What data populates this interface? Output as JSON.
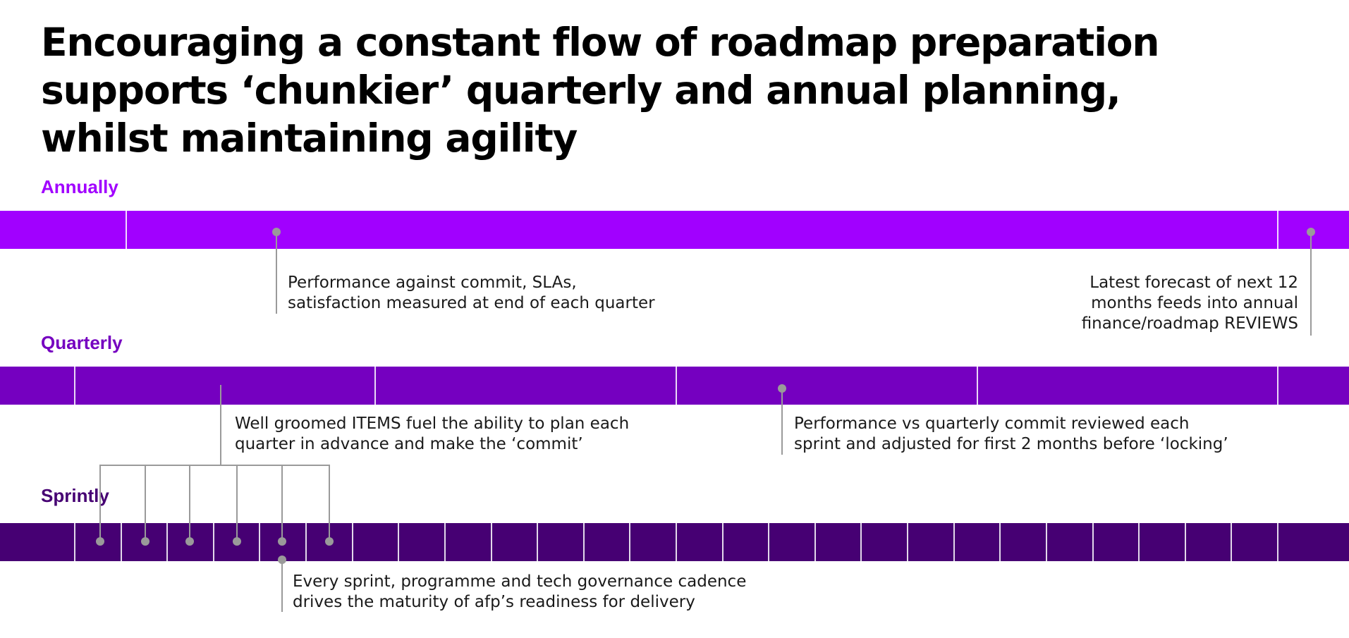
{
  "title": {
    "lines": [
      "Encouraging a constant flow of roadmap preparation",
      "supports ‘chunkier’ quarterly and annual planning,",
      "whilst maintaining agility"
    ]
  },
  "colors": {
    "annual": "#a100ff",
    "quarterly": "#7500c0",
    "sprintly": "#460073",
    "connector": "#9a9a9a"
  },
  "sections": {
    "annually": {
      "label": "Annually"
    },
    "quarterly": {
      "label": "Quarterly"
    },
    "sprintly": {
      "label": "Sprintly"
    }
  },
  "callouts": {
    "performance_quarter": [
      "Performance against commit, SLAs,",
      "satisfaction measured at end of each quarter"
    ],
    "forecast": [
      "Latest forecast of next 12",
      "months feeds into annual",
      "finance/roadmap REVIEWS"
    ],
    "groomed_items": [
      "Well groomed ITEMS fuel the ability to plan each",
      "quarter in advance and make the ‘commit’"
    ],
    "quarterly_commit": [
      "Performance vs quarterly commit reviewed each",
      "sprint and adjusted for first 2 months before ‘locking’"
    ],
    "governance": [
      "Every sprint, programme and tech governance cadence",
      "drives the maturity of afp’s readiness for delivery"
    ]
  }
}
